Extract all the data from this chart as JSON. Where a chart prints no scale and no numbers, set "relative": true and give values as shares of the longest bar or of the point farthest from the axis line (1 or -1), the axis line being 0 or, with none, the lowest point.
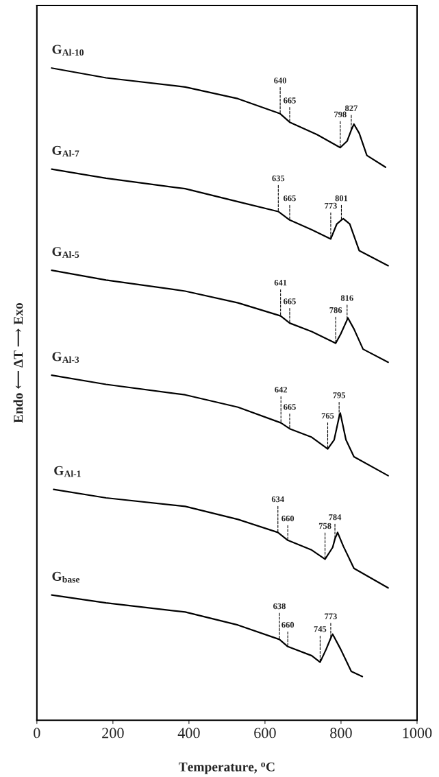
{
  "chart_data": {
    "type": "line",
    "relative": true,
    "xlabel": "Temperature, $^{o}$C",
    "ylabel": "Endo ⟵ ΔT ⟶ Exo",
    "xlim": [
      0,
      1000
    ],
    "xticks": [
      0,
      200,
      400,
      600,
      800,
      1000
    ],
    "tick_labels": "x",
    "grid": false,
    "legend": false,
    "series": [
      {
        "name": "G$_{Al-10}$",
        "color": "#000000",
        "x": [
          39,
          182,
          390,
          529,
          640,
          665,
          737,
          798,
          816,
          827,
          834,
          848,
          868,
          917
        ],
        "values": [
          1.0,
          0.985,
          0.971,
          0.953,
          0.93,
          0.917,
          0.898,
          0.878,
          0.888,
          0.905,
          0.914,
          0.9,
          0.866,
          0.848
        ]
      },
      {
        "name": "G$_{Al-7}$",
        "color": "#000000",
        "x": [
          39,
          182,
          390,
          529,
          635,
          665,
          723,
          773,
          789,
          801,
          806,
          823,
          848,
          924
        ],
        "values": [
          0.845,
          0.831,
          0.815,
          0.795,
          0.78,
          0.767,
          0.752,
          0.738,
          0.761,
          0.767,
          0.769,
          0.761,
          0.72,
          0.697
        ]
      },
      {
        "name": "G$_{Al-5}$",
        "color": "#000000",
        "x": [
          39,
          182,
          390,
          529,
          641,
          665,
          723,
          786,
          799,
          816,
          818,
          834,
          858,
          924
        ],
        "values": [
          0.69,
          0.675,
          0.658,
          0.64,
          0.62,
          0.609,
          0.596,
          0.578,
          0.592,
          0.614,
          0.617,
          0.6,
          0.569,
          0.549
        ]
      },
      {
        "name": "G$_{Al-3}$",
        "color": "#000000",
        "x": [
          39,
          182,
          390,
          529,
          642,
          665,
          723,
          765,
          782,
          795,
          798,
          813,
          834,
          924
        ],
        "values": [
          0.529,
          0.515,
          0.499,
          0.48,
          0.456,
          0.447,
          0.434,
          0.416,
          0.43,
          0.465,
          0.471,
          0.43,
          0.404,
          0.375
        ]
      },
      {
        "name": "G$_{Al-1}$",
        "color": "#000000",
        "x": [
          44,
          182,
          390,
          529,
          634,
          660,
          723,
          758,
          778,
          784,
          791,
          806,
          834,
          924
        ],
        "values": [
          0.354,
          0.341,
          0.328,
          0.308,
          0.288,
          0.276,
          0.261,
          0.247,
          0.265,
          0.278,
          0.288,
          0.267,
          0.233,
          0.203
        ]
      },
      {
        "name": "G$_{base}$",
        "color": "#000000",
        "x": [
          39,
          182,
          390,
          529,
          638,
          660,
          723,
          745,
          761,
          773,
          778,
          799,
          827,
          856
        ],
        "values": [
          0.192,
          0.18,
          0.166,
          0.146,
          0.124,
          0.113,
          0.099,
          0.089,
          0.109,
          0.126,
          0.132,
          0.109,
          0.075,
          0.067
        ]
      }
    ],
    "annotations": [
      {
        "text": "640",
        "x": 640,
        "y": 0.93
      },
      {
        "text": "665",
        "x": 665,
        "y": 0.917
      },
      {
        "text": "798",
        "x": 798,
        "y": 0.878
      },
      {
        "text": "827",
        "x": 827,
        "y": 0.905
      },
      {
        "text": "635",
        "x": 635,
        "y": 0.78
      },
      {
        "text": "665",
        "x": 665,
        "y": 0.767
      },
      {
        "text": "773",
        "x": 773,
        "y": 0.738
      },
      {
        "text": "801",
        "x": 801,
        "y": 0.767
      },
      {
        "text": "641",
        "x": 641,
        "y": 0.62
      },
      {
        "text": "665",
        "x": 665,
        "y": 0.609
      },
      {
        "text": "786",
        "x": 786,
        "y": 0.578
      },
      {
        "text": "816",
        "x": 816,
        "y": 0.614
      },
      {
        "text": "642",
        "x": 642,
        "y": 0.456
      },
      {
        "text": "665",
        "x": 665,
        "y": 0.447
      },
      {
        "text": "765",
        "x": 765,
        "y": 0.416
      },
      {
        "text": "795",
        "x": 795,
        "y": 0.465
      },
      {
        "text": "634",
        "x": 634,
        "y": 0.288
      },
      {
        "text": "660",
        "x": 660,
        "y": 0.276
      },
      {
        "text": "758",
        "x": 758,
        "y": 0.247
      },
      {
        "text": "784",
        "x": 784,
        "y": 0.278
      },
      {
        "text": "638",
        "x": 638,
        "y": 0.124
      },
      {
        "text": "660",
        "x": 660,
        "y": 0.113
      },
      {
        "text": "745",
        "x": 745,
        "y": 0.089
      },
      {
        "text": "773",
        "x": 773,
        "y": 0.126
      }
    ]
  }
}
